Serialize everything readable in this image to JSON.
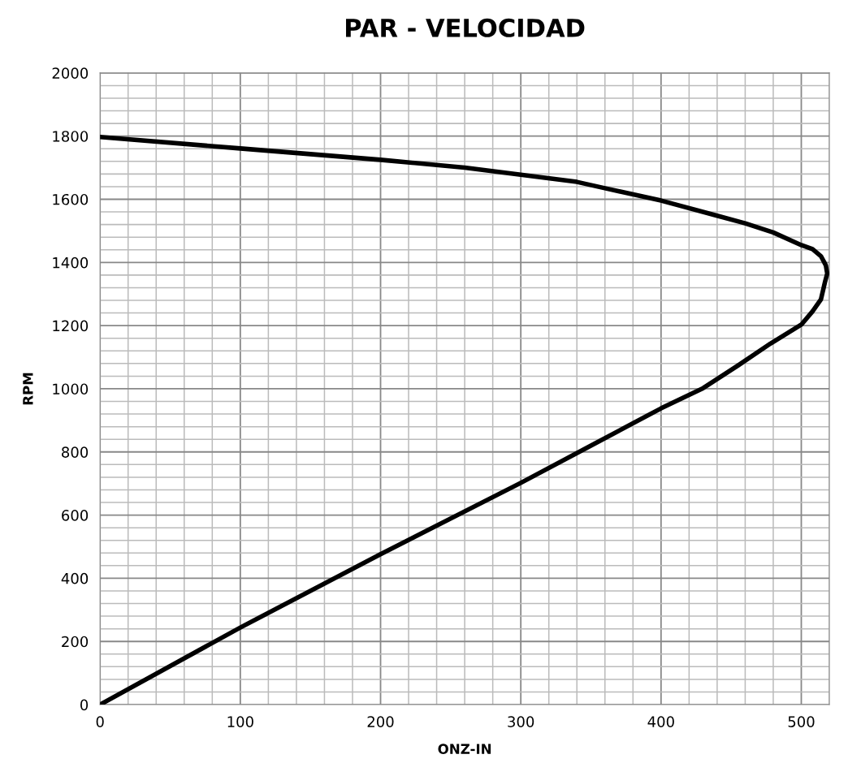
{
  "chart_data": {
    "type": "line",
    "title": "PAR - VELOCIDAD",
    "xlabel": "ONZ-IN",
    "ylabel": "RPM",
    "x": [
      0,
      100,
      200,
      260,
      300,
      340,
      360,
      400,
      440,
      460,
      480,
      500,
      508,
      514,
      517.5,
      518.5,
      517,
      514,
      508,
      500,
      478,
      455,
      430,
      400,
      350,
      300,
      200,
      100,
      0
    ],
    "series": [
      {
        "color": "#000000",
        "values": [
          1797,
          1761,
          1725,
          1700,
          1678,
          1655,
          1635,
          1596,
          1548,
          1524,
          1495,
          1455,
          1442,
          1420,
          1391,
          1365,
          1340,
          1283,
          1245,
          1203,
          1143,
          1074,
          1002,
          938,
          820,
          702,
          476,
          244,
          0
        ]
      }
    ],
    "xlim": [
      0,
      520
    ],
    "ylim": [
      0,
      2000
    ],
    "xticks": [
      0,
      100,
      200,
      300,
      400,
      500
    ],
    "yticks": [
      0,
      200,
      400,
      600,
      800,
      1000,
      1200,
      1400,
      1600,
      1800,
      2000
    ],
    "grid": true,
    "marker": "none",
    "line_style": "solid"
  }
}
